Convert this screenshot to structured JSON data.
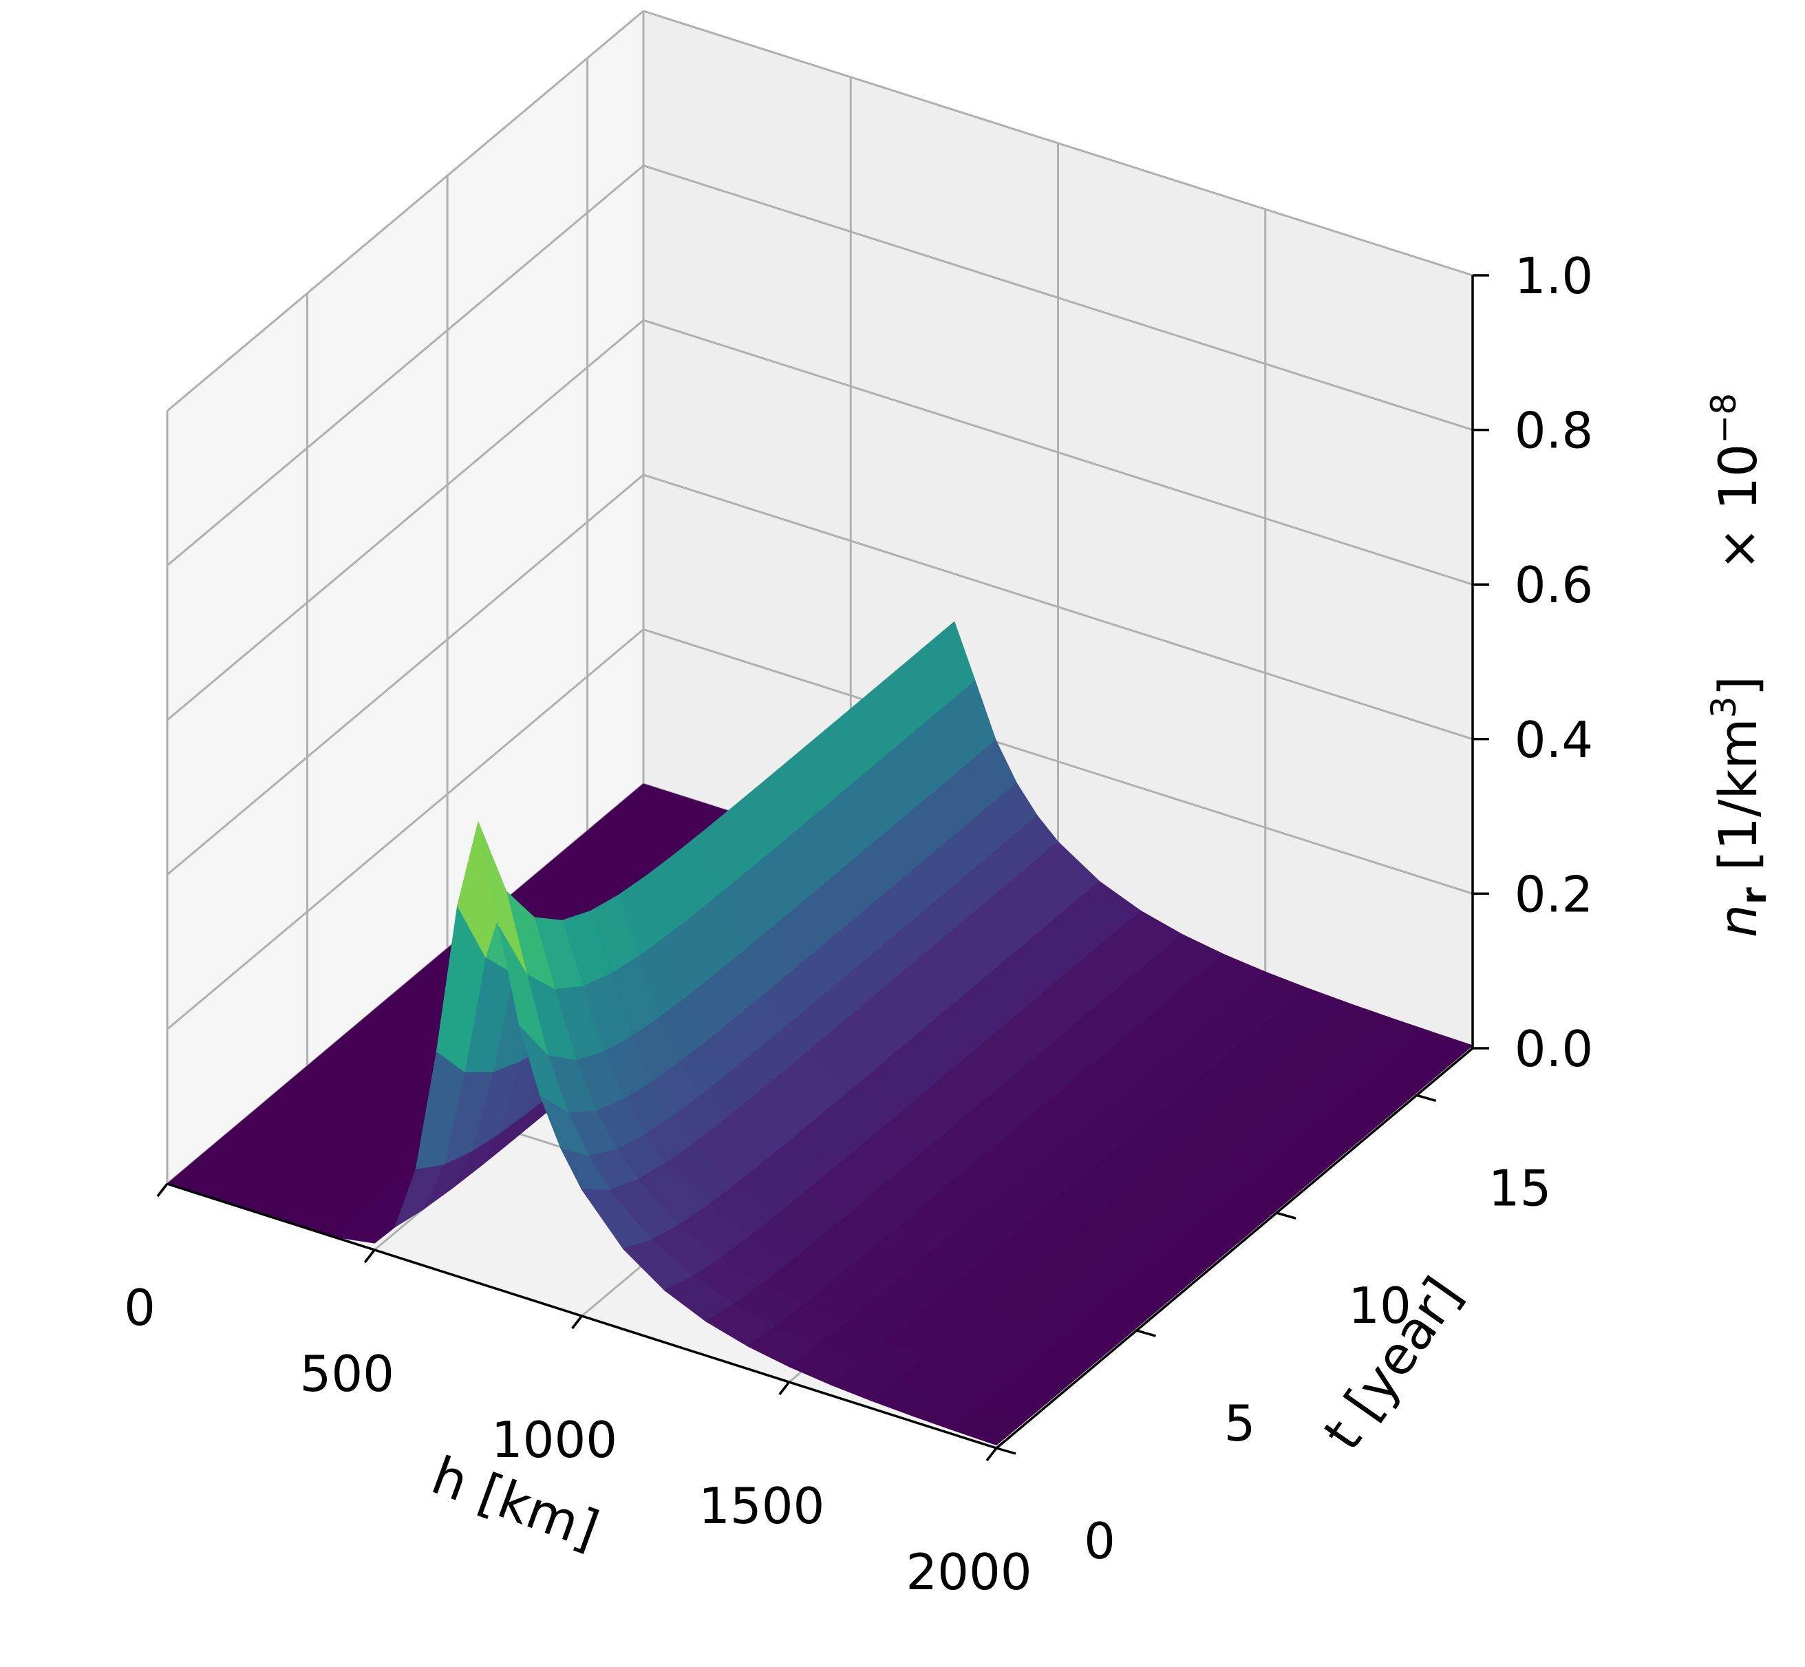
{
  "chart_data": {
    "type": "surface3d",
    "colormap": "viridis",
    "axes": {
      "x": {
        "label": "h [km]",
        "range": [
          0,
          2000
        ],
        "ticks": [
          "0",
          "500",
          "1000",
          "1500",
          "2000"
        ]
      },
      "y": {
        "label": "t [year]",
        "range": [
          0,
          17
        ],
        "ticks": [
          "0",
          "5",
          "10",
          "15"
        ]
      },
      "z": {
        "label_main": "n",
        "label_sub": "r",
        "label_unit": "[1/km",
        "label_unit_sup": "3",
        "label_close": "]",
        "range": [
          0,
          1.0
        ],
        "ticks": [
          "0.0",
          "0.2",
          "0.4",
          "0.6",
          "0.8",
          "1.0"
        ],
        "offset_base": "× 10",
        "offset_exp": "−8"
      }
    },
    "surface": {
      "h_values": [
        0,
        100,
        200,
        300,
        400,
        500,
        550,
        600,
        650,
        700,
        750,
        800,
        850,
        900,
        950,
        1000,
        1100,
        1200,
        1300,
        1400,
        1500,
        1600,
        1700,
        1800,
        1900,
        2000
      ],
      "t_values": [
        0,
        1,
        2,
        3,
        4,
        5,
        6,
        7,
        8,
        9,
        10,
        11,
        12,
        13,
        14,
        15,
        16,
        17
      ],
      "peak_h_km": 760,
      "early_peak": 0.6,
      "late_peak": 0.34,
      "baseline_h_max_km": 550
    },
    "grid": true
  }
}
